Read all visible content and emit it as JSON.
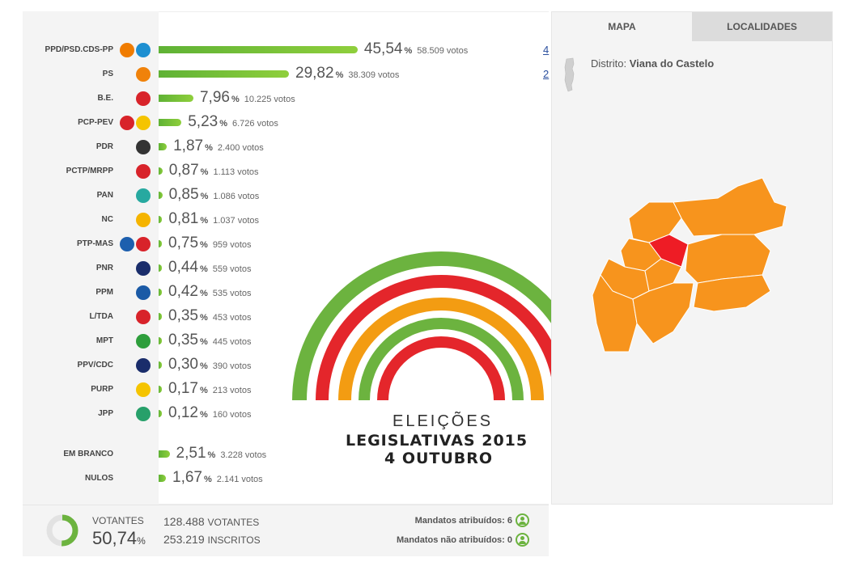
{
  "parties": [
    {
      "name": "PPD/PSD.CDS-PP",
      "pct": "45,54",
      "votes": "58.509 votos",
      "share": 45.54,
      "seats": "4",
      "logo_colors": [
        "#f07c00",
        "#1d8fd1"
      ]
    },
    {
      "name": "PS",
      "pct": "29,82",
      "votes": "38.309 votos",
      "share": 29.82,
      "seats": "2",
      "logo_colors": [
        "#f0820a"
      ]
    },
    {
      "name": "B.E.",
      "pct": "7,96",
      "votes": "10.225 votos",
      "share": 7.96,
      "logo_colors": [
        "#d8232a"
      ]
    },
    {
      "name": "PCP-PEV",
      "pct": "5,23",
      "votes": "6.726 votos",
      "share": 5.23,
      "logo_colors": [
        "#d8232a",
        "#f5c400"
      ]
    },
    {
      "name": "PDR",
      "pct": "1,87",
      "votes": "2.400 votos",
      "share": 1.87,
      "logo_colors": [
        "#333333"
      ]
    },
    {
      "name": "PCTP/MRPP",
      "pct": "0,87",
      "votes": "1.113 votos",
      "share": 0.87,
      "logo_colors": [
        "#d8232a"
      ]
    },
    {
      "name": "PAN",
      "pct": "0,85",
      "votes": "1.086 votos",
      "share": 0.85,
      "logo_colors": [
        "#27a9a0"
      ]
    },
    {
      "name": "NC",
      "pct": "0,81",
      "votes": "1.037 votos",
      "share": 0.81,
      "logo_colors": [
        "#f5b400"
      ]
    },
    {
      "name": "PTP-MAS",
      "pct": "0,75",
      "votes": "959 votos",
      "share": 0.75,
      "logo_colors": [
        "#1d5fae",
        "#d8232a"
      ]
    },
    {
      "name": "PNR",
      "pct": "0,44",
      "votes": "559 votos",
      "share": 0.44,
      "logo_colors": [
        "#1a2d6b"
      ]
    },
    {
      "name": "PPM",
      "pct": "0,42",
      "votes": "535 votos",
      "share": 0.42,
      "logo_colors": [
        "#1a5aa6"
      ]
    },
    {
      "name": "L/TDA",
      "pct": "0,35",
      "votes": "453 votos",
      "share": 0.35,
      "logo_colors": [
        "#d8232a"
      ]
    },
    {
      "name": "MPT",
      "pct": "0,35",
      "votes": "445 votos",
      "share": 0.35,
      "logo_colors": [
        "#2e9e3c"
      ]
    },
    {
      "name": "PPV/CDC",
      "pct": "0,30",
      "votes": "390 votos",
      "share": 0.3,
      "logo_colors": [
        "#1a2d6b"
      ]
    },
    {
      "name": "PURP",
      "pct": "0,17",
      "votes": "213 votos",
      "share": 0.17,
      "logo_colors": [
        "#f5c400"
      ]
    },
    {
      "name": "JPP",
      "pct": "0,12",
      "votes": "160 votos",
      "share": 0.12,
      "logo_colors": [
        "#27a06a"
      ]
    }
  ],
  "others": [
    {
      "name": "EM BRANCO",
      "pct": "2,51",
      "votes": "3.228 votos",
      "share": 2.51
    },
    {
      "name": "NULOS",
      "pct": "1,67",
      "votes": "2.141 votos",
      "share": 1.67
    }
  ],
  "pct_sign": "%",
  "logo": {
    "line1": "ELEIÇÕES",
    "line2": "LEGISLATIVAS 2015",
    "line3": "4 OUTUBRO",
    "arc_colors": [
      "#6cb33f",
      "#e4262b",
      "#f39c12",
      "#6cb33f",
      "#e4262b"
    ]
  },
  "tabs": {
    "map": "MAPA",
    "places": "LOCALIDADES"
  },
  "district": {
    "label": "Distrito:",
    "value": "Viana do Castelo"
  },
  "map_colors": {
    "default": "#f7941d",
    "selected": "#ee1c25",
    "border": "#ffffff"
  },
  "footer": {
    "votantes_label": "VOTANTES",
    "votantes_pct": "50,74",
    "votantes_share": 50.74,
    "voters_count": "128.488",
    "voters_label": "VOTANTES",
    "registered_count": "253.219",
    "registered_label": "INSCRITOS",
    "assigned": "Mandatos atribuídos: 6",
    "unassigned": "Mandatos não atribuídos: 0"
  }
}
